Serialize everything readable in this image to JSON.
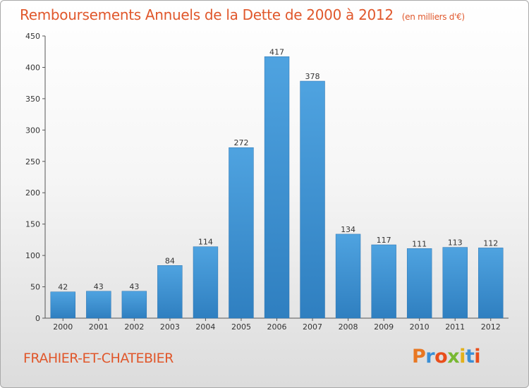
{
  "chart_data": {
    "type": "bar",
    "title": "Remboursements Annuels de la Dette de 2000 à 2012",
    "subtitle": "(en milliers d'€)",
    "categories": [
      "2000",
      "2001",
      "2002",
      "2003",
      "2004",
      "2005",
      "2006",
      "2007",
      "2008",
      "2009",
      "2010",
      "2011",
      "2012"
    ],
    "values": [
      42,
      43,
      43,
      84,
      114,
      272,
      417,
      378,
      134,
      117,
      111,
      113,
      112
    ],
    "ylim": [
      0,
      450
    ],
    "yticks": [
      0,
      50,
      100,
      150,
      200,
      250,
      300,
      350,
      400,
      450
    ],
    "grid": false,
    "bar_color": "#4fa3e0",
    "bar_color_dark": "#2f7fc0"
  },
  "footer": {
    "commune": "FRAHIER-ET-CHATEBIER",
    "logo": "Proxiti",
    "logo_colors": [
      "#e87722",
      "#3a8fd6",
      "#e94e1b",
      "#78b833",
      "#e2b11c",
      "#3a8fd6",
      "#e94e1b"
    ]
  }
}
